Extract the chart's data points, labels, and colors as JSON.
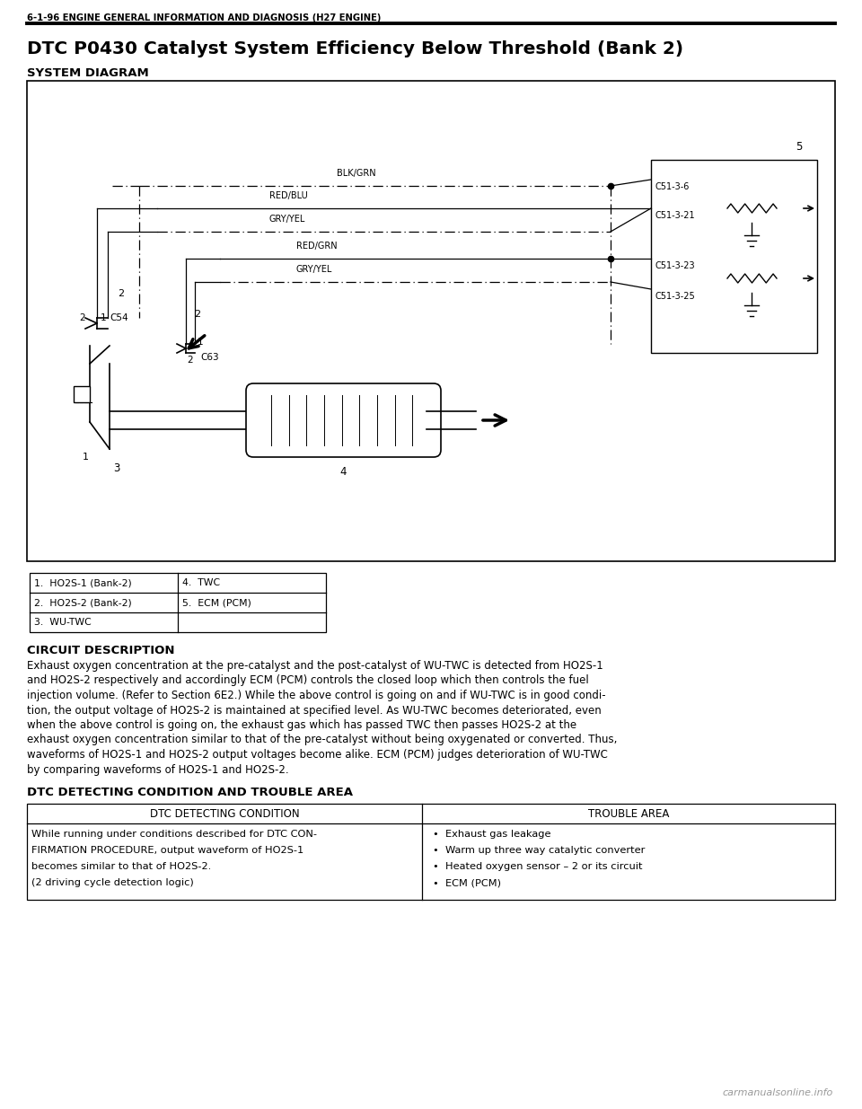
{
  "page_header": "6-1-96 ENGINE GENERAL INFORMATION AND DIAGNOSIS (H27 ENGINE)",
  "title": "DTC P0430 Catalyst System Efficiency Below Threshold (Bank 2)",
  "section1": "SYSTEM DIAGRAM",
  "section2": "CIRCUIT DESCRIPTION",
  "circuit_description_lines": [
    "Exhaust oxygen concentration at the pre-catalyst and the post-catalyst of WU-TWC is detected from HO2S-1",
    "and HO2S-2 respectively and accordingly ECM (PCM) controls the closed loop which then controls the fuel",
    "injection volume. (Refer to Section 6E2.) While the above control is going on and if WU-TWC is in good condi-",
    "tion, the output voltage of HO2S-2 is maintained at specified level. As WU-TWC becomes deteriorated, even",
    "when the above control is going on, the exhaust gas which has passed TWC then passes HO2S-2 at the",
    "exhaust oxygen concentration similar to that of the pre-catalyst without being oxygenated or converted. Thus,",
    "waveforms of HO2S-1 and HO2S-2 output voltages become alike. ECM (PCM) judges deterioration of WU-TWC",
    "by comparing waveforms of HO2S-1 and HO2S-2."
  ],
  "section3": "DTC DETECTING CONDITION AND TROUBLE AREA",
  "table_header_left": "DTC DETECTING CONDITION",
  "table_header_right": "TROUBLE AREA",
  "table_left_lines": [
    "While running under conditions described for DTC CON-",
    "FIRMATION PROCEDURE, output waveform of HO2S-1",
    "becomes similar to that of HO2S-2.",
    "(2 driving cycle detection logic)"
  ],
  "table_right_items": [
    "Exhaust gas leakage",
    "Warm up three way catalytic converter",
    "Heated oxygen sensor – 2 or its circuit",
    "ECM (PCM)"
  ],
  "legend_items": [
    [
      "1.  HO2S-1 (Bank-2)",
      "4.  TWC"
    ],
    [
      "2.  HO2S-2 (Bank-2)",
      "5.  ECM (PCM)"
    ],
    [
      "3.  WU-TWC",
      ""
    ]
  ],
  "wire_labels": [
    "BLK/GRN",
    "RED/BLU",
    "GRY/YEL",
    "RED/GRN",
    "GRY/YEL"
  ],
  "connector_labels": [
    "C51-3-6",
    "C51-3-21",
    "C51-3-23",
    "C51-3-25"
  ],
  "bg_color": "#ffffff",
  "text_color": "#000000"
}
